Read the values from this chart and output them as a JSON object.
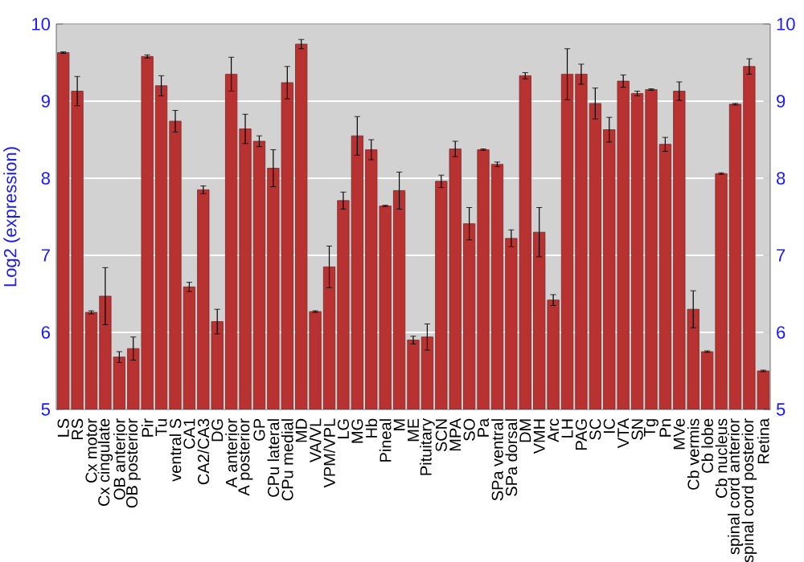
{
  "chart_data": {
    "type": "bar",
    "ylabel": "Log2 (expression)",
    "categories": [
      "LS",
      "RS",
      "Cx motor",
      "Cx cingulate",
      "OB anterior",
      "OB posterior",
      "Pir",
      "Tu",
      "ventral S",
      "CA1",
      "CA2/CA3",
      "DG",
      "A anterior",
      "A posterior",
      "GP",
      "CPu lateral",
      "CPu medial",
      "MD",
      "VA/VL",
      "VPM/VPL",
      "LG",
      "MG",
      "Hb",
      "Pineal",
      "M",
      "ME",
      "Pituitary",
      "SCN",
      "MPA",
      "SO",
      "Pa",
      "SPa ventral",
      "SPa dorsal",
      "DM",
      "VMH",
      "Arc",
      "LH",
      "PAG",
      "SC",
      "IC",
      "VTA",
      "SN",
      "Tg",
      "Pn",
      "MVe",
      "Cb vermis",
      "Cb lobe",
      "Cb nucleus",
      "spinal cord anterior",
      "spinal cord posterior",
      "Retina"
    ],
    "values": [
      9.63,
      9.13,
      6.26,
      6.47,
      5.68,
      5.79,
      9.58,
      9.2,
      8.74,
      6.59,
      7.85,
      6.14,
      9.35,
      8.64,
      8.48,
      8.13,
      9.24,
      9.74,
      6.27,
      6.85,
      7.71,
      8.55,
      8.37,
      7.64,
      7.84,
      5.9,
      5.94,
      7.96,
      8.38,
      7.41,
      8.37,
      8.18,
      7.22,
      9.33,
      7.3,
      6.42,
      9.35,
      9.35,
      8.97,
      8.63,
      9.26,
      9.1,
      9.15,
      8.44,
      9.13,
      6.3,
      5.75,
      8.06,
      8.96,
      9.45,
      5.5
    ],
    "errors": [
      0.01,
      0.19,
      0.02,
      0.37,
      0.07,
      0.15,
      0.02,
      0.13,
      0.14,
      0.06,
      0.05,
      0.16,
      0.22,
      0.19,
      0.07,
      0.24,
      0.21,
      0.06,
      0.01,
      0.27,
      0.11,
      0.25,
      0.13,
      0.01,
      0.24,
      0.05,
      0.17,
      0.08,
      0.1,
      0.21,
      0.01,
      0.03,
      0.11,
      0.04,
      0.32,
      0.07,
      0.33,
      0.13,
      0.2,
      0.16,
      0.08,
      0.03,
      0.01,
      0.09,
      0.12,
      0.24,
      0.01,
      0.01,
      0.01,
      0.1,
      0.01
    ],
    "color": "#b83232",
    "ylim": [
      5,
      10
    ],
    "yticks": [
      5,
      6,
      7,
      8,
      9,
      10
    ],
    "y2lim": [
      5,
      10
    ],
    "y2ticks": [
      5,
      6,
      7,
      8,
      9,
      10
    ],
    "grid": "y"
  }
}
